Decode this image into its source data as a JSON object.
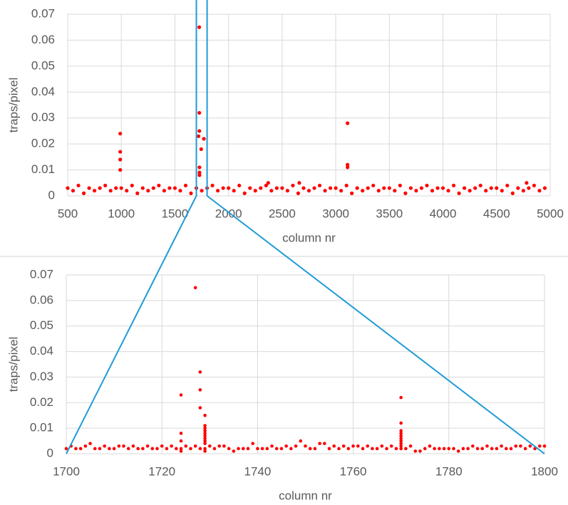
{
  "chart_data": [
    {
      "type": "scatter",
      "x_label": "column nr",
      "y_label": "traps/pixel",
      "color": "#ff0000",
      "grid": true,
      "xlim": [
        500,
        5000
      ],
      "xticks": [
        500,
        1000,
        1500,
        2000,
        2500,
        3000,
        3500,
        4000,
        4500,
        5000
      ],
      "ylim": [
        0,
        0.07
      ],
      "yticks": [
        0,
        0.01,
        0.02,
        0.03,
        0.04,
        0.05,
        0.06,
        0.07
      ],
      "x": [
        500,
        550,
        600,
        650,
        700,
        750,
        800,
        850,
        900,
        950,
        1000,
        1050,
        1100,
        1150,
        1200,
        1250,
        1300,
        1350,
        1400,
        1450,
        1500,
        1550,
        1600,
        1650,
        1700,
        1750,
        1800,
        1850,
        1900,
        1950,
        2000,
        2050,
        2100,
        2150,
        2200,
        2250,
        2300,
        2350,
        2400,
        2450,
        2500,
        2550,
        2600,
        2650,
        2700,
        2750,
        2800,
        2850,
        2900,
        2950,
        3000,
        3050,
        3100,
        3150,
        3200,
        3250,
        3300,
        3350,
        3400,
        3450,
        3500,
        3550,
        3600,
        3650,
        3700,
        3750,
        3800,
        3850,
        3900,
        3950,
        4000,
        4050,
        4100,
        4150,
        4200,
        4250,
        4300,
        4350,
        4400,
        4450,
        4500,
        4550,
        4600,
        4650,
        4700,
        4750,
        4800,
        4850,
        4900,
        4950,
        990,
        990,
        990,
        990,
        1720,
        1727,
        1728,
        1728,
        1729,
        1729,
        1729,
        1745,
        1770,
        3110,
        3110,
        3110,
        2370,
        2660,
        4780
      ],
      "values": [
        0.003,
        0.002,
        0.004,
        0.001,
        0.003,
        0.002,
        0.003,
        0.004,
        0.002,
        0.003,
        0.003,
        0.002,
        0.004,
        0.001,
        0.003,
        0.002,
        0.003,
        0.004,
        0.002,
        0.003,
        0.003,
        0.002,
        0.004,
        0.001,
        0.003,
        0.002,
        0.003,
        0.004,
        0.002,
        0.003,
        0.003,
        0.002,
        0.004,
        0.001,
        0.003,
        0.002,
        0.003,
        0.004,
        0.002,
        0.003,
        0.003,
        0.002,
        0.004,
        0.001,
        0.003,
        0.002,
        0.003,
        0.004,
        0.002,
        0.003,
        0.003,
        0.002,
        0.004,
        0.001,
        0.003,
        0.002,
        0.003,
        0.004,
        0.002,
        0.003,
        0.003,
        0.002,
        0.004,
        0.001,
        0.003,
        0.002,
        0.003,
        0.004,
        0.002,
        0.003,
        0.003,
        0.002,
        0.004,
        0.001,
        0.003,
        0.002,
        0.003,
        0.004,
        0.002,
        0.003,
        0.003,
        0.002,
        0.004,
        0.001,
        0.003,
        0.002,
        0.003,
        0.004,
        0.002,
        0.003,
        0.024,
        0.017,
        0.014,
        0.01,
        0.023,
        0.065,
        0.032,
        0.025,
        0.011,
        0.009,
        0.008,
        0.018,
        0.022,
        0.028,
        0.012,
        0.011,
        0.005,
        0.005,
        0.005
      ]
    },
    {
      "type": "scatter",
      "x_label": "column nr",
      "y_label": "traps/pixel",
      "color": "#ff0000",
      "grid": true,
      "xlim": [
        1700,
        1800
      ],
      "xticks": [
        1700,
        1720,
        1740,
        1760,
        1780,
        1800
      ],
      "ylim": [
        0,
        0.07
      ],
      "yticks": [
        0,
        0.01,
        0.02,
        0.03,
        0.04,
        0.05,
        0.06,
        0.07
      ],
      "x": [
        1700,
        1701,
        1702,
        1703,
        1704,
        1705,
        1706,
        1707,
        1708,
        1709,
        1710,
        1711,
        1712,
        1713,
        1714,
        1715,
        1716,
        1717,
        1718,
        1719,
        1720,
        1721,
        1722,
        1723,
        1724,
        1725,
        1726,
        1727,
        1728,
        1729,
        1730,
        1731,
        1732,
        1733,
        1734,
        1735,
        1736,
        1737,
        1738,
        1739,
        1740,
        1741,
        1742,
        1743,
        1744,
        1745,
        1746,
        1747,
        1748,
        1749,
        1750,
        1751,
        1752,
        1753,
        1754,
        1755,
        1756,
        1757,
        1758,
        1759,
        1760,
        1761,
        1762,
        1763,
        1764,
        1765,
        1766,
        1767,
        1768,
        1769,
        1770,
        1771,
        1772,
        1773,
        1774,
        1775,
        1776,
        1777,
        1778,
        1779,
        1780,
        1781,
        1782,
        1783,
        1784,
        1785,
        1786,
        1787,
        1788,
        1789,
        1790,
        1791,
        1792,
        1793,
        1794,
        1795,
        1796,
        1797,
        1798,
        1799,
        1800,
        1724,
        1724,
        1724,
        1724,
        1727,
        1728,
        1728,
        1728,
        1729,
        1729,
        1729,
        1729,
        1729,
        1729,
        1729,
        1729,
        1729,
        1729,
        1770,
        1770,
        1770,
        1770,
        1770,
        1770,
        1770,
        1770,
        1770
      ],
      "values": [
        0.002,
        0.003,
        0.002,
        0.002,
        0.003,
        0.004,
        0.002,
        0.002,
        0.003,
        0.002,
        0.002,
        0.003,
        0.003,
        0.002,
        0.003,
        0.002,
        0.002,
        0.003,
        0.002,
        0.002,
        0.003,
        0.002,
        0.003,
        0.002,
        0.002,
        0.003,
        0.002,
        0.003,
        0.002,
        0.002,
        0.003,
        0.002,
        0.003,
        0.003,
        0.002,
        0.001,
        0.002,
        0.002,
        0.002,
        0.004,
        0.002,
        0.002,
        0.002,
        0.003,
        0.002,
        0.002,
        0.003,
        0.002,
        0.003,
        0.005,
        0.003,
        0.002,
        0.002,
        0.004,
        0.004,
        0.002,
        0.003,
        0.002,
        0.003,
        0.002,
        0.003,
        0.003,
        0.002,
        0.003,
        0.002,
        0.002,
        0.003,
        0.002,
        0.003,
        0.002,
        0.002,
        0.002,
        0.003,
        0.001,
        0.001,
        0.002,
        0.003,
        0.002,
        0.002,
        0.002,
        0.002,
        0.002,
        0.001,
        0.002,
        0.002,
        0.003,
        0.002,
        0.002,
        0.003,
        0.002,
        0.002,
        0.003,
        0.002,
        0.002,
        0.003,
        0.003,
        0.002,
        0.003,
        0.002,
        0.003,
        0.003,
        0.023,
        0.008,
        0.005,
        0.001,
        0.065,
        0.032,
        0.025,
        0.018,
        0.015,
        0.011,
        0.01,
        0.009,
        0.008,
        0.007,
        0.006,
        0.005,
        0.004,
        0.001,
        0.022,
        0.012,
        0.009,
        0.008,
        0.007,
        0.006,
        0.005,
        0.004,
        0.003
      ]
    }
  ]
}
